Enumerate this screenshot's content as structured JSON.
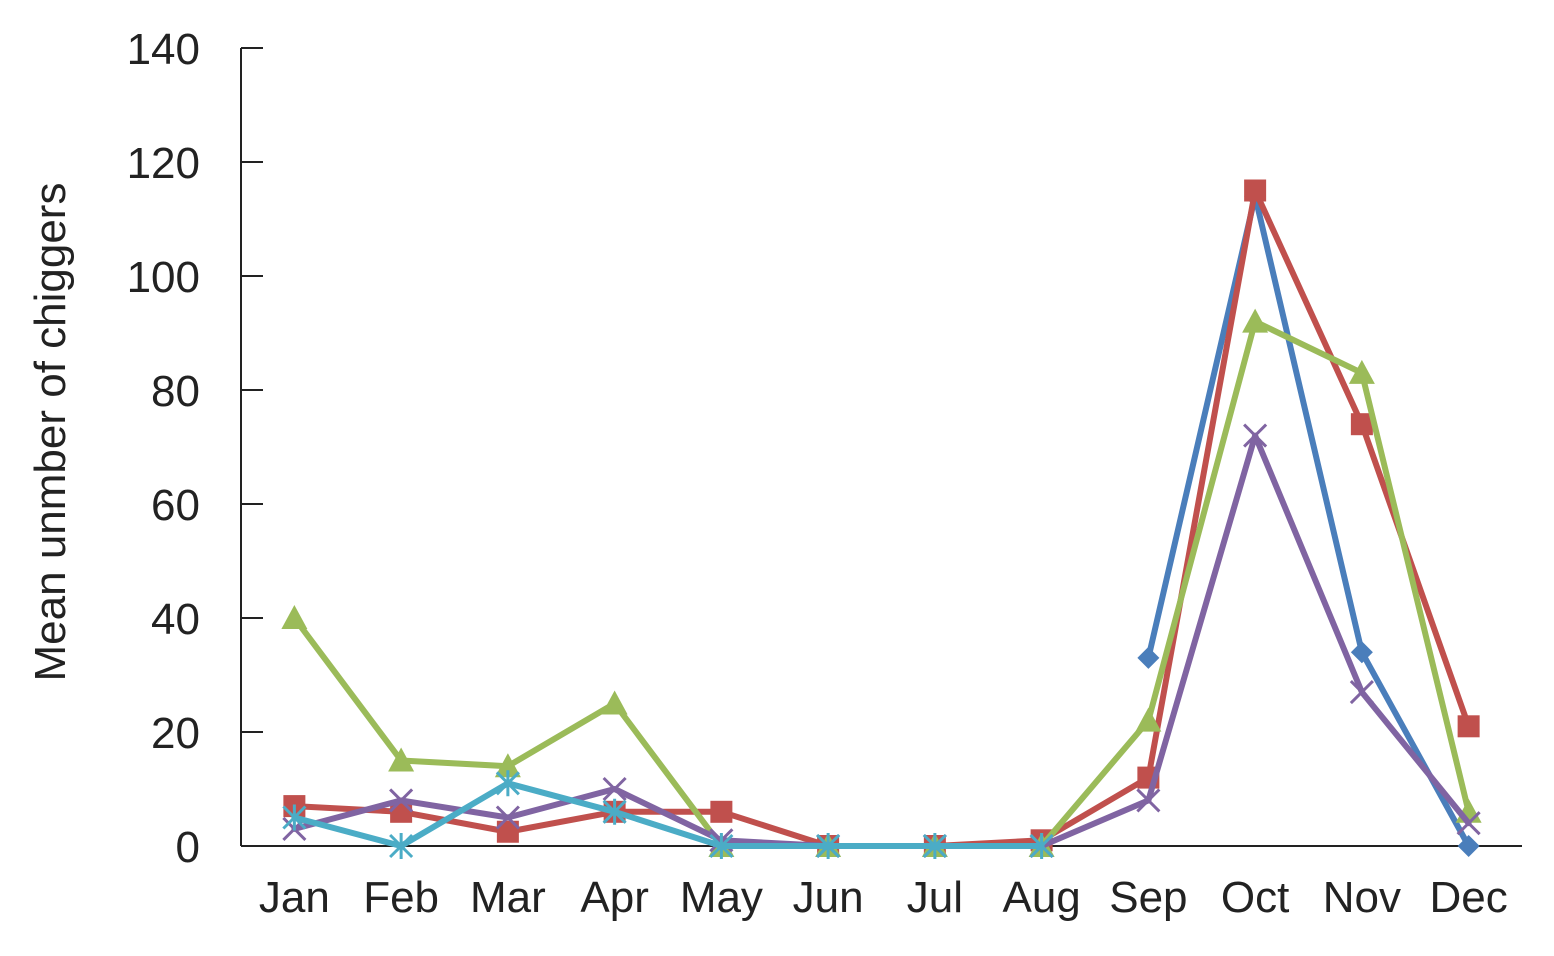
{
  "chart_data": {
    "type": "line",
    "title": "",
    "xlabel": "",
    "ylabel": "Mean unmber of chiggers",
    "ylim": [
      0,
      140
    ],
    "yticks": [
      0,
      20,
      40,
      60,
      80,
      100,
      120,
      140
    ],
    "categories": [
      "Jan",
      "Feb",
      "Mar",
      "Apr",
      "May",
      "Jun",
      "Jul",
      "Aug",
      "Sep",
      "Oct",
      "Nov",
      "Dec"
    ],
    "grid": false,
    "legend": "none",
    "series": [
      {
        "color": "#4a7ebb",
        "marker": "diamond",
        "values": [
          null,
          null,
          null,
          null,
          null,
          null,
          null,
          null,
          33,
          114,
          34,
          0
        ]
      },
      {
        "color": "#c0504d",
        "marker": "square",
        "values": [
          7,
          6,
          2.5,
          6,
          6,
          0,
          0,
          1,
          12,
          115,
          74,
          21
        ]
      },
      {
        "color": "#9bbb59",
        "marker": "triangle",
        "values": [
          40,
          15,
          14,
          25,
          0,
          0,
          0,
          0,
          22,
          92,
          83,
          6
        ]
      },
      {
        "color": "#8064a2",
        "marker": "x",
        "values": [
          3,
          8,
          5,
          10,
          1,
          0,
          0,
          0,
          8,
          72,
          27,
          4
        ]
      },
      {
        "color": "#4bacc6",
        "marker": "asterisk",
        "values": [
          5,
          0,
          11,
          6,
          0,
          0,
          0,
          0,
          null,
          null,
          null,
          null
        ]
      }
    ]
  }
}
